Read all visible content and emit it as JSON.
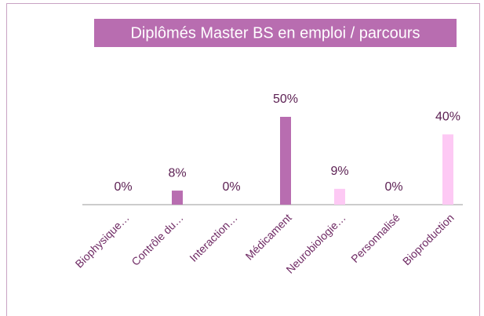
{
  "chart_data": {
    "type": "bar",
    "title": "Diplômés Master BS en emploi / parcours",
    "categories": [
      "Biophysique…",
      "Contrôle du…",
      "Interaction…",
      "Médicament",
      "Neurobiologie…",
      "Personnalisé",
      "Bioproduction"
    ],
    "values": [
      0,
      8,
      0,
      50,
      9,
      0,
      40
    ],
    "value_labels": [
      "0%",
      "8%",
      "0%",
      "50%",
      "9%",
      "0%",
      "40%"
    ],
    "colors": [
      "#b86db0",
      "#b86db0",
      "#b86db0",
      "#b86db0",
      "#fdc9f4",
      "#fdc9f4",
      "#fdc9f4"
    ],
    "title_background": "#b86db0"
  }
}
